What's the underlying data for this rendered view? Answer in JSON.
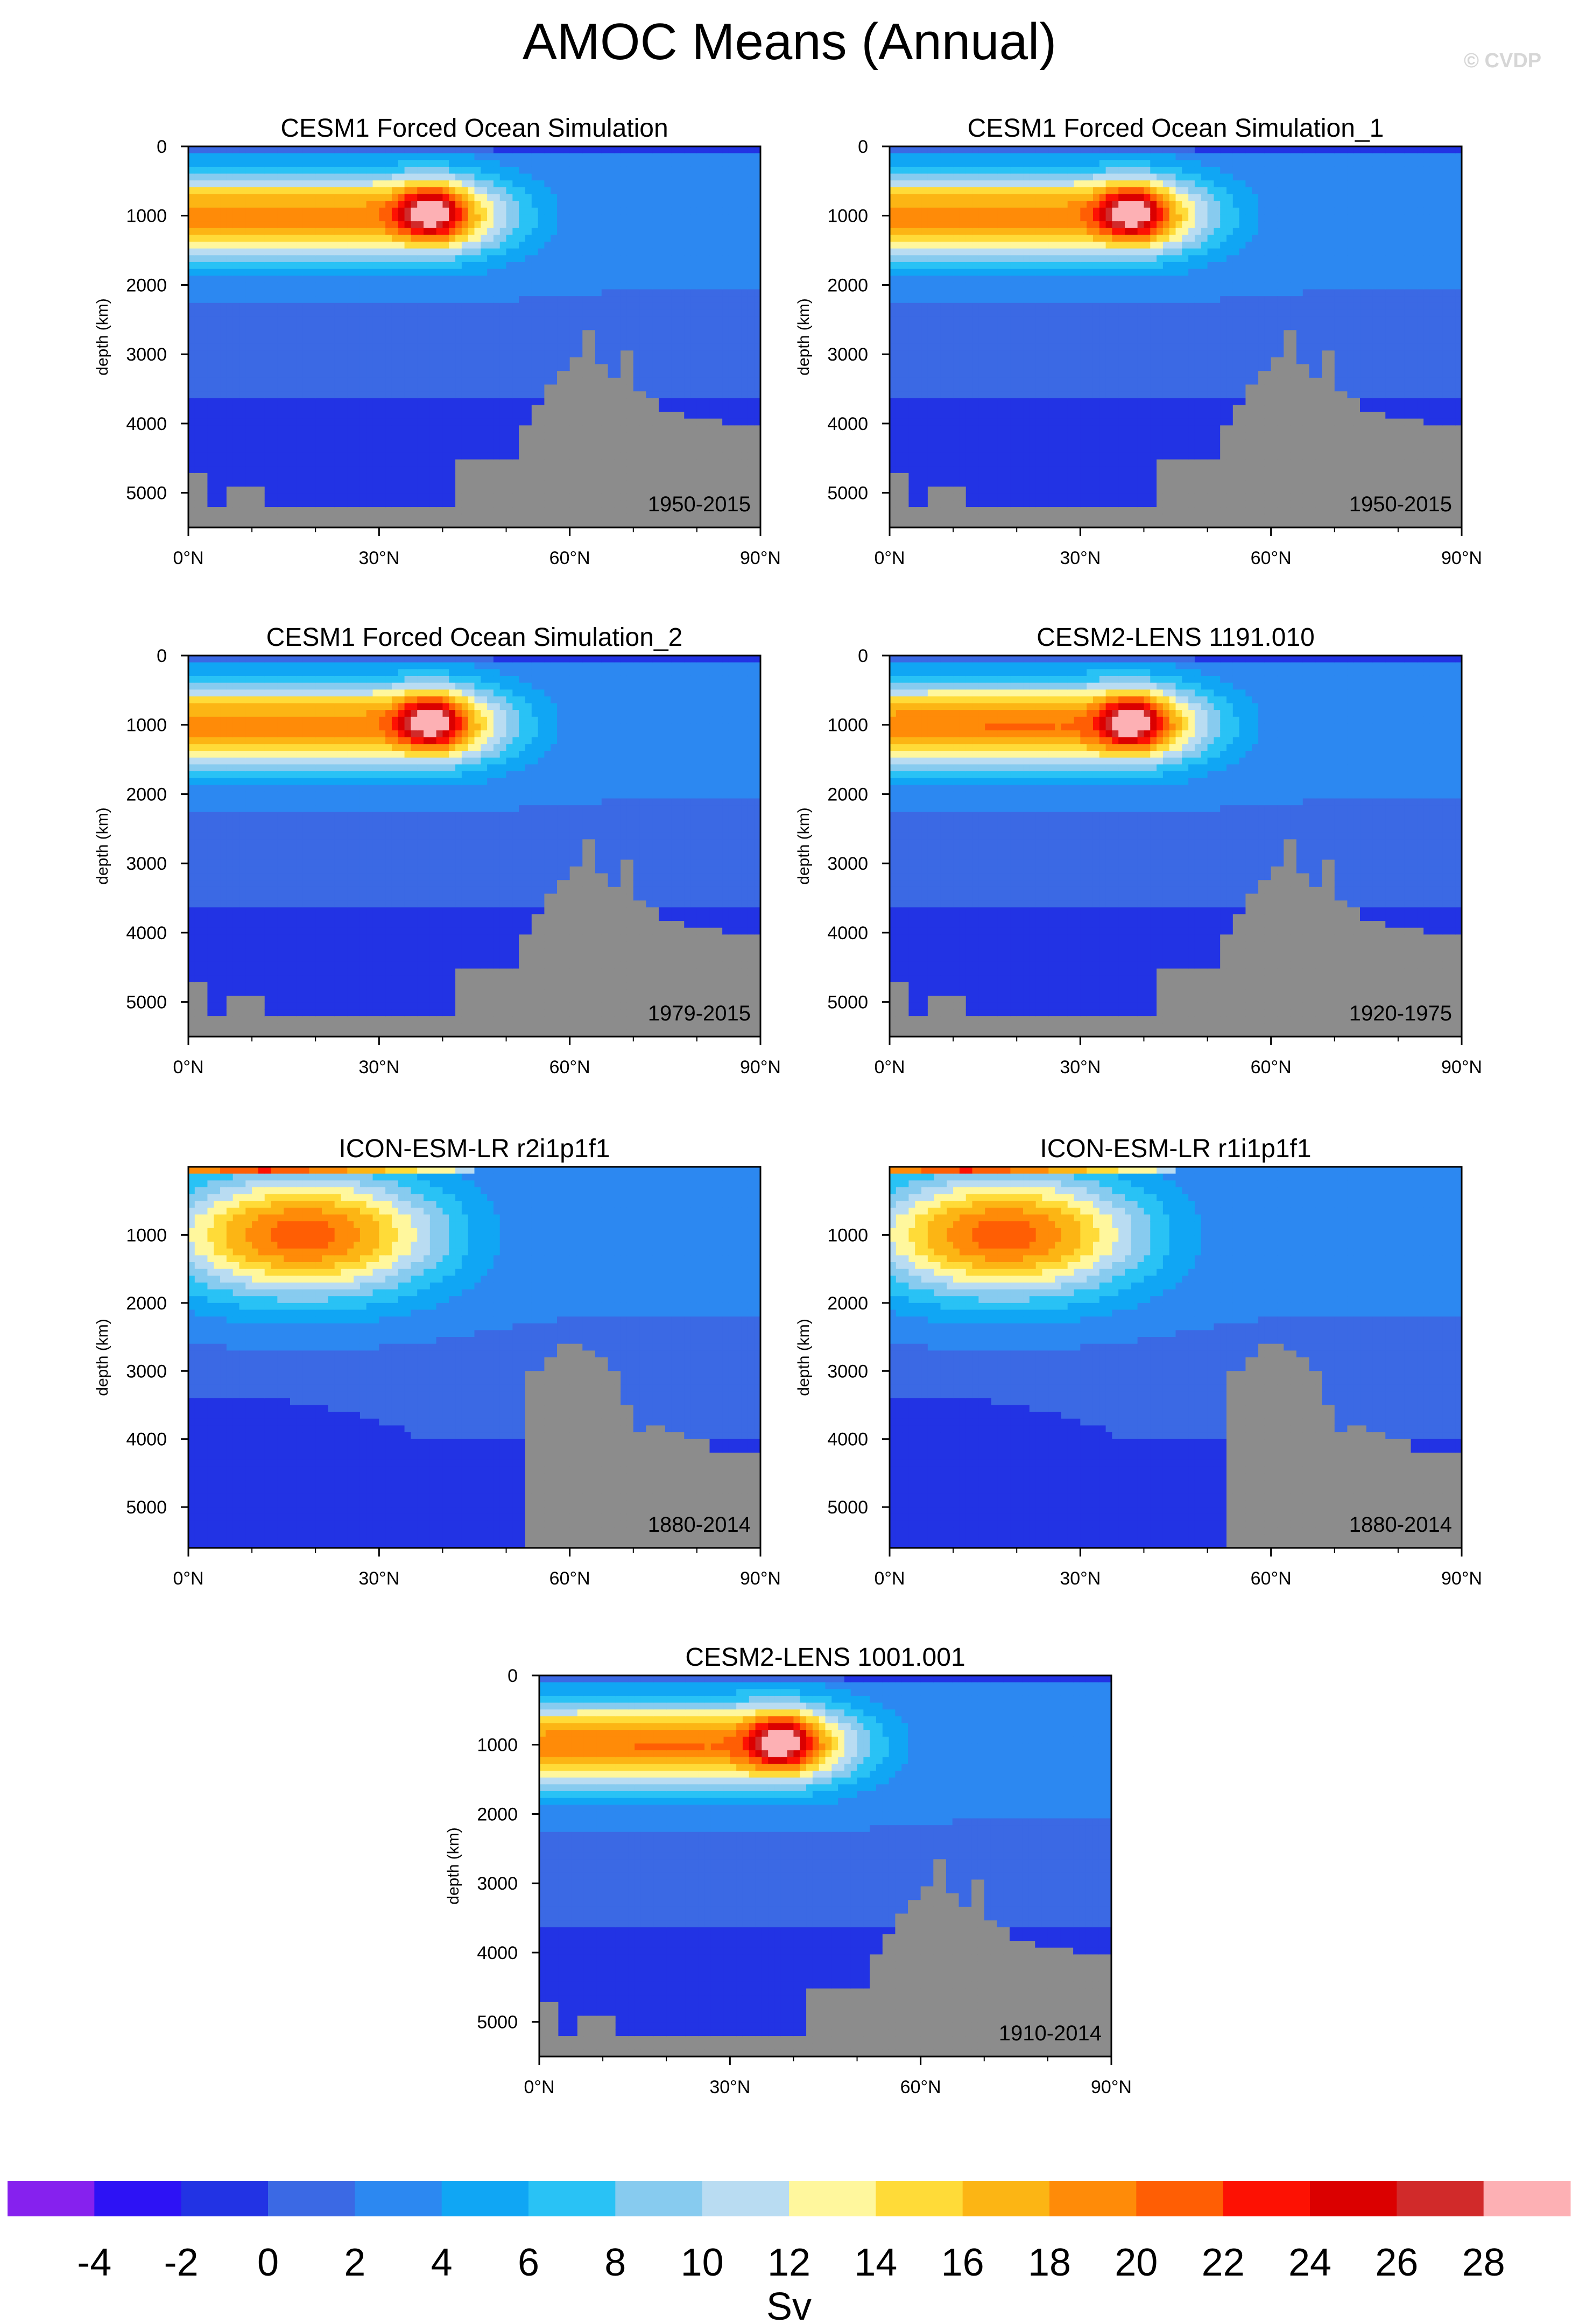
{
  "title": "AMOC Means (Annual)",
  "watermark": "© CVDP",
  "colorbar": {
    "colors": [
      "#8621ee",
      "#2d12f5",
      "#2233e4",
      "#3b69e4",
      "#2c88f1",
      "#10a6f4",
      "#29c2f5",
      "#87cbef",
      "#b9dcf2",
      "#fff79d",
      "#ffdb38",
      "#fcb514",
      "#ff8b08",
      "#ff5e04",
      "#fd1103",
      "#db0000",
      "#d12a2a",
      "#fdb0b4"
    ],
    "ticks": [
      "-4",
      "-2",
      "0",
      "2",
      "4",
      "6",
      "8",
      "10",
      "12",
      "14",
      "16",
      "18",
      "20",
      "22",
      "24",
      "26",
      "28"
    ],
    "unit": "Sv"
  },
  "chart_data": [
    {
      "type": "heatmap",
      "title": "CESM1 Forced Ocean Simulation",
      "period": "1950-2015",
      "ylabel": "depth (km)",
      "x_ticks": [
        "0°N",
        "30°N",
        "60°N",
        "90°N"
      ],
      "y_ticks": [
        "0",
        "1000",
        "2000",
        "3000",
        "4000",
        "5000"
      ],
      "xlim": [
        0,
        90
      ],
      "ylim": [
        5500,
        0
      ],
      "max_value_sv": 26,
      "max_location": {
        "lat": 38,
        "depth": 950
      }
    },
    {
      "type": "heatmap",
      "title": "CESM1 Forced Ocean Simulation_1",
      "period": "1950-2015",
      "ylabel": "depth (km)",
      "x_ticks": [
        "0°N",
        "30°N",
        "60°N",
        "90°N"
      ],
      "y_ticks": [
        "0",
        "1000",
        "2000",
        "3000",
        "4000",
        "5000"
      ],
      "xlim": [
        0,
        90
      ],
      "ylim": [
        5500,
        0
      ],
      "max_value_sv": 26,
      "max_location": {
        "lat": 38,
        "depth": 950
      }
    },
    {
      "type": "heatmap",
      "title": "CESM1 Forced Ocean Simulation_2",
      "period": "1979-2015",
      "ylabel": "depth (km)",
      "x_ticks": [
        "0°N",
        "30°N",
        "60°N",
        "90°N"
      ],
      "y_ticks": [
        "0",
        "1000",
        "2000",
        "3000",
        "4000",
        "5000"
      ],
      "xlim": [
        0,
        90
      ],
      "ylim": [
        5500,
        0
      ],
      "max_value_sv": 26,
      "max_location": {
        "lat": 38,
        "depth": 950
      }
    },
    {
      "type": "heatmap",
      "title": "CESM2-LENS 1191.010",
      "period": "1920-1975",
      "ylabel": "depth (km)",
      "x_ticks": [
        "0°N",
        "30°N",
        "60°N",
        "90°N"
      ],
      "y_ticks": [
        "0",
        "1000",
        "2000",
        "3000",
        "4000",
        "5000"
      ],
      "xlim": [
        0,
        90
      ],
      "ylim": [
        5500,
        0
      ],
      "max_value_sv": 26,
      "max_location": {
        "lat": 39,
        "depth": 950
      }
    },
    {
      "type": "heatmap",
      "title": "ICON-ESM-LR r2i1p1f1",
      "period": "1880-2014",
      "ylabel": "depth (km)",
      "x_ticks": [
        "0°N",
        "30°N",
        "60°N",
        "90°N"
      ],
      "y_ticks": [
        "1000",
        "2000",
        "3000",
        "4000",
        "5000"
      ],
      "xlim": [
        0,
        90
      ],
      "ylim": [
        5600,
        0
      ],
      "max_value_sv": 24,
      "max_location": {
        "lat": 10,
        "depth": 50
      }
    },
    {
      "type": "heatmap",
      "title": "ICON-ESM-LR r1i1p1f1",
      "period": "1880-2014",
      "ylabel": "depth (km)",
      "x_ticks": [
        "0°N",
        "30°N",
        "60°N",
        "90°N"
      ],
      "y_ticks": [
        "1000",
        "2000",
        "3000",
        "4000",
        "5000"
      ],
      "xlim": [
        0,
        90
      ],
      "ylim": [
        5600,
        0
      ],
      "max_value_sv": 24,
      "max_location": {
        "lat": 10,
        "depth": 50
      }
    },
    {
      "type": "heatmap",
      "title": "CESM2-LENS 1001.001",
      "period": "1910-2014",
      "ylabel": "depth (km)",
      "x_ticks": [
        "0°N",
        "30°N",
        "60°N",
        "90°N"
      ],
      "y_ticks": [
        "0",
        "1000",
        "2000",
        "3000",
        "4000",
        "5000"
      ],
      "xlim": [
        0,
        90
      ],
      "ylim": [
        5500,
        0
      ],
      "max_value_sv": 26,
      "max_location": {
        "lat": 39,
        "depth": 950
      }
    }
  ]
}
